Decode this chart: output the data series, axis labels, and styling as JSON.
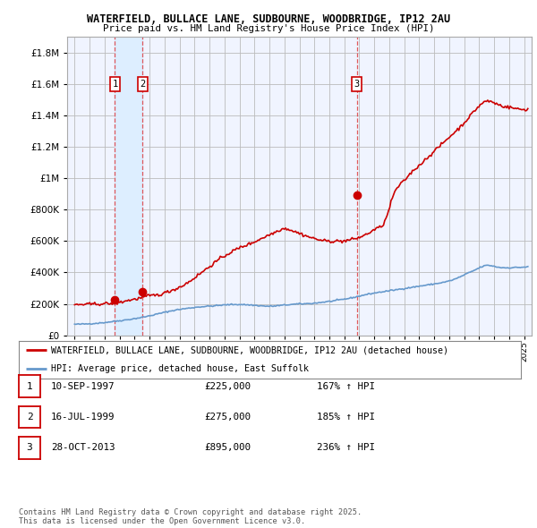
{
  "title_line1": "WATERFIELD, BULLACE LANE, SUDBOURNE, WOODBRIDGE, IP12 2AU",
  "title_line2": "Price paid vs. HM Land Registry's House Price Index (HPI)",
  "ytick_values": [
    0,
    200000,
    400000,
    600000,
    800000,
    1000000,
    1200000,
    1400000,
    1600000,
    1800000
  ],
  "ylim": [
    0,
    1900000
  ],
  "xlim_start": 1994.5,
  "xlim_end": 2025.5,
  "sale_dates": [
    1997.69,
    1999.54,
    2013.83
  ],
  "sale_prices": [
    225000,
    275000,
    895000
  ],
  "sale_labels": [
    "1",
    "2",
    "3"
  ],
  "vline_color": "#dd3333",
  "property_line_color": "#cc0000",
  "hpi_line_color": "#6699cc",
  "shaded_region_color": "#ddeeff",
  "background_color": "#ffffff",
  "plot_bg_color": "#f0f4ff",
  "grid_color": "#bbbbbb",
  "legend_items": [
    "WATERFIELD, BULLACE LANE, SUDBOURNE, WOODBRIDGE, IP12 2AU (detached house)",
    "HPI: Average price, detached house, East Suffolk"
  ],
  "table_data": [
    [
      "1",
      "10-SEP-1997",
      "£225,000",
      "167% ↑ HPI"
    ],
    [
      "2",
      "16-JUL-1999",
      "£275,000",
      "185% ↑ HPI"
    ],
    [
      "3",
      "28-OCT-2013",
      "£895,000",
      "236% ↑ HPI"
    ]
  ],
  "footnote": "Contains HM Land Registry data © Crown copyright and database right 2025.\nThis data is licensed under the Open Government Licence v3.0."
}
